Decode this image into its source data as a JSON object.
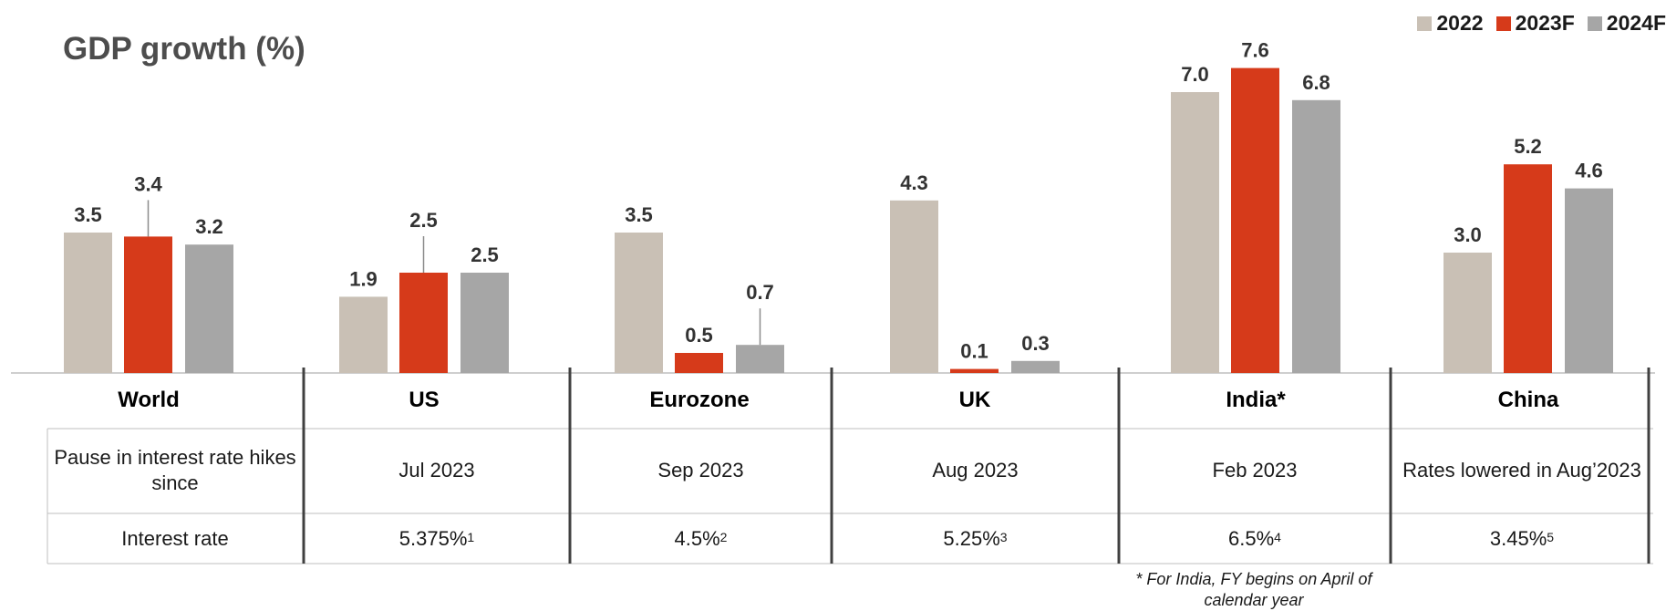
{
  "chart_data": {
    "type": "bar",
    "title": "GDP growth (%)",
    "categories": [
      "World",
      "US",
      "Eurozone",
      "UK",
      "India*",
      "China"
    ],
    "series": [
      {
        "name": "2022",
        "color": "#c9c0b5",
        "values": [
          3.5,
          1.9,
          3.5,
          4.3,
          7.0,
          3.0
        ]
      },
      {
        "name": "2023F",
        "color": "#d63a1a",
        "values": [
          3.4,
          2.5,
          0.5,
          0.1,
          7.6,
          5.2
        ]
      },
      {
        "name": "2024F",
        "color": "#a6a6a6",
        "values": [
          3.2,
          2.5,
          0.7,
          0.3,
          6.8,
          4.6
        ]
      }
    ],
    "ylim": [
      0,
      8
    ],
    "grid": false,
    "legend_position": "top-right"
  },
  "table": {
    "rows": [
      {
        "label": "Pause in interest rate hikes since",
        "values": [
          {
            "text": "Jul 2023"
          },
          {
            "text": "Sep 2023"
          },
          {
            "text": "Aug 2023"
          },
          {
            "text": "Feb 2023"
          },
          {
            "text": "Rates lowered in Aug’2023"
          }
        ]
      },
      {
        "label": "Interest rate",
        "values": [
          {
            "text": "5.375%",
            "note": "1"
          },
          {
            "text": "4.5%",
            "note": "2"
          },
          {
            "text": "5.25%",
            "note": "3"
          },
          {
            "text": "6.5%",
            "note": "4"
          },
          {
            "text": "3.45%",
            "note": "5"
          }
        ]
      }
    ]
  },
  "footnote": "* For India, FY begins on April of calendar year"
}
